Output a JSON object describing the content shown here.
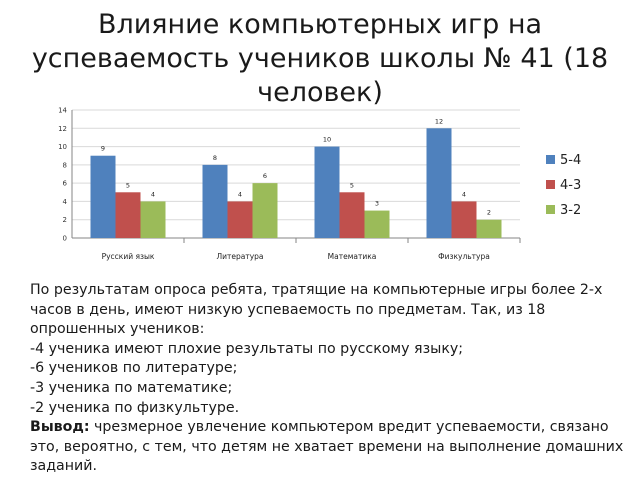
{
  "title": "Влияние компьютерных игр на успеваемость учеников школы № 41 (18 человек)",
  "chart_data": {
    "type": "bar",
    "categories": [
      "Русский язык",
      "Литература",
      "Математика",
      "Физкультура"
    ],
    "series": [
      {
        "name": "5-4",
        "values": [
          9,
          8,
          10,
          12
        ],
        "color": "#4f81bd"
      },
      {
        "name": "4-3",
        "values": [
          5,
          4,
          5,
          4
        ],
        "color": "#c0504d"
      },
      {
        "name": "3-2",
        "values": [
          4,
          6,
          3,
          2
        ],
        "color": "#9bbb59"
      }
    ],
    "ylim": [
      0,
      14
    ],
    "yticks": [
      0,
      2,
      4,
      6,
      8,
      10,
      12,
      14
    ],
    "grid": true,
    "legend": "right",
    "data_labels": true
  },
  "text": {
    "paragraph1": "По результатам опроса ребята, тратящие на компьютерные игры более 2-х часов в день, имеют низкую успеваемость по предметам. Так, из 18 опрошенных учеников:",
    "item1": "-4 ученика имеют плохие результаты по русскому языку;",
    "item2": "-6 учеников по литературе;",
    "item3": "-3 ученика по математике;",
    "item4": "-2 ученика  по физкультуре.",
    "conclusion_label": "Вывод:",
    "conclusion_text": "  чрезмерное увлечение компьютером вредит успеваемости, связано это, вероятно, с тем, что детям не хватает времени на выполнение домашних заданий."
  }
}
